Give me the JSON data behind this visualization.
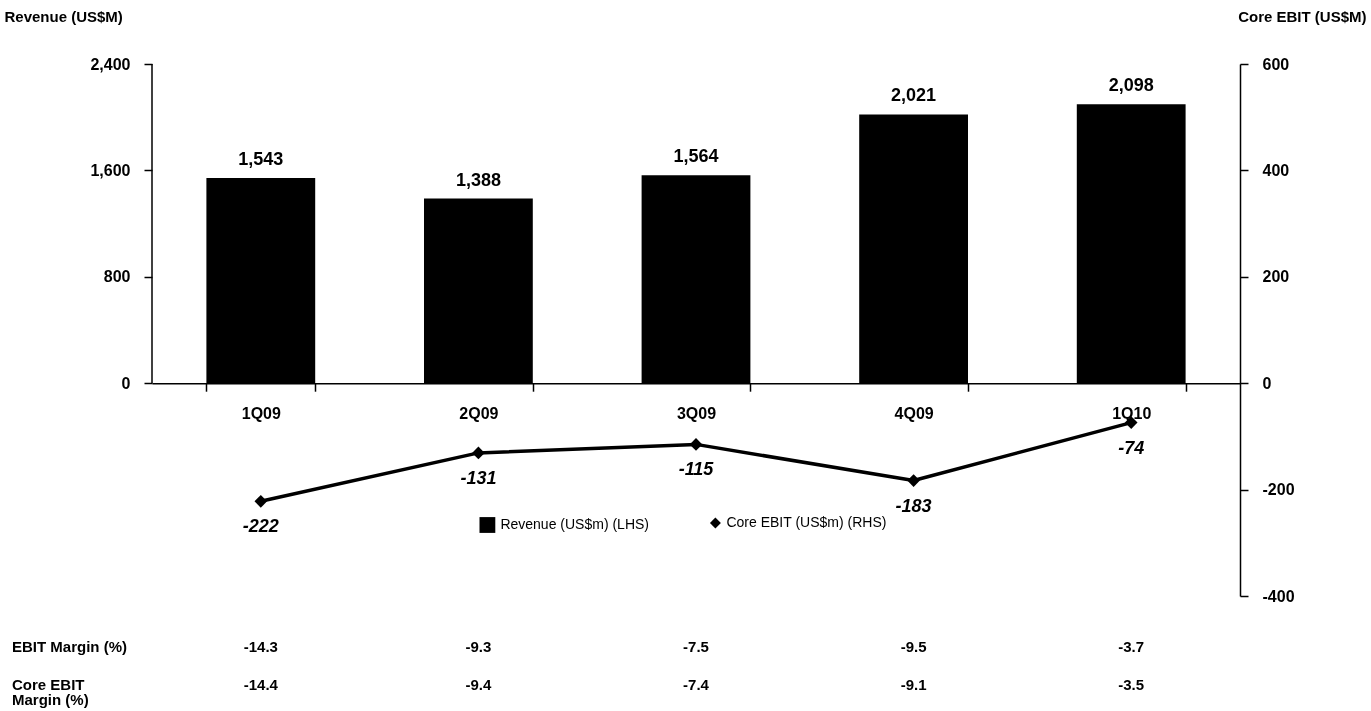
{
  "chart_data": {
    "type": "bar",
    "categories": [
      "1Q09",
      "2Q09",
      "3Q09",
      "4Q09",
      "1Q10"
    ],
    "ylabel": "Revenue (US$M)",
    "y2label": "Core EBIT (US$M)",
    "series": [
      {
        "name": "Revenue (US$m) (LHS)",
        "color": "#000000",
        "values": [
          1543,
          1388,
          1564,
          2021,
          2098
        ],
        "value_labels": [
          "1,543",
          "1,388",
          "1,564",
          "2,021",
          "2,098"
        ]
      },
      {
        "name": "Core EBIT (US$m) (RHS)",
        "type": "line",
        "axis": "y2",
        "color": "#000000",
        "marker": "diamond",
        "values": [
          -222,
          -131,
          -115,
          -183,
          -74
        ]
      }
    ],
    "ylim": [
      -1600,
      2400
    ],
    "yticks": [
      0,
      800,
      {
        "value": 1600,
        "label": "1,600"
      },
      {
        "value": 2400,
        "label": "2,400"
      }
    ],
    "y2lim": [
      -400,
      600
    ],
    "y2ticks": [
      -400,
      -200,
      0,
      200,
      400,
      600
    ],
    "data_labels": true,
    "grid": false,
    "legend": "bottom",
    "annotations": [
      "EBIT Margin (%)",
      "-14.3",
      "-9.3",
      "-7.5",
      "-9.5",
      "-3.7",
      "Core EBIT Margin (%)",
      "-14.4",
      "-9.4",
      "-7.4",
      "-9.1",
      "-3.5"
    ]
  }
}
